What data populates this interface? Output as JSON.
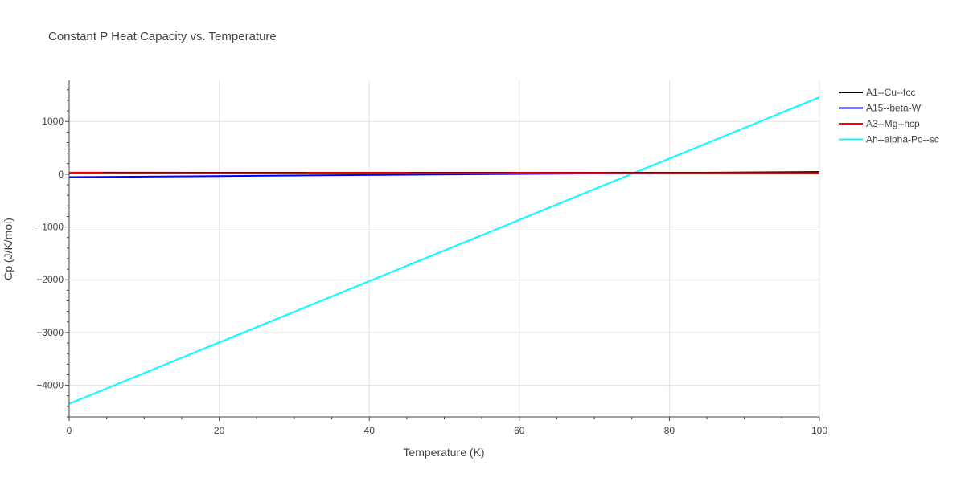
{
  "chart_data": {
    "type": "line",
    "title": "Constant P Heat Capacity vs. Temperature",
    "xlabel": "Temperature (K)",
    "ylabel": "Cp (J/K/mol)",
    "xlim": [
      0,
      100
    ],
    "ylim": [
      -4600,
      1780
    ],
    "x_ticks": [
      0,
      20,
      40,
      60,
      80,
      100
    ],
    "y_ticks": [
      -4000,
      -3000,
      -2000,
      -1000,
      0,
      1000
    ],
    "x_tick_labels": [
      "0",
      "20",
      "40",
      "60",
      "80",
      "100"
    ],
    "y_tick_labels": [
      "−4000",
      "−3000",
      "−2000",
      "−1000",
      "0",
      "1000"
    ],
    "grid": true,
    "legend_position": "top-right",
    "series": [
      {
        "name": "A1--Cu--fcc",
        "color": "#000000",
        "x": [
          0,
          100
        ],
        "y": [
          30,
          28
        ]
      },
      {
        "name": "A15--beta-W",
        "color": "#0000ff",
        "x": [
          0,
          100
        ],
        "y": [
          -55,
          45
        ]
      },
      {
        "name": "A3--Mg--hcp",
        "color": "#ff0000",
        "x": [
          0,
          100
        ],
        "y": [
          28,
          22
        ]
      },
      {
        "name": "Ah--alpha-Po--sc",
        "color": "#00ffff",
        "x": [
          0,
          100
        ],
        "y": [
          -4350,
          1460
        ]
      }
    ]
  }
}
